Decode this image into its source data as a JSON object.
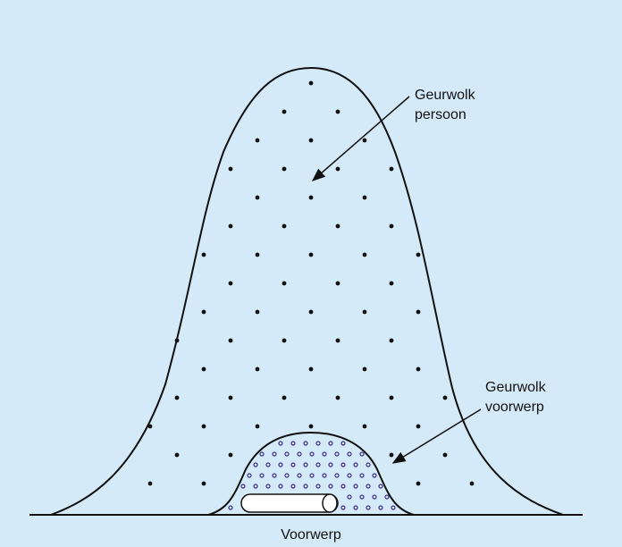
{
  "diagram": {
    "labels": {
      "person_cloud": [
        "Geurwolk",
        "persoon"
      ],
      "object_cloud": [
        "Geurwolk",
        "voorwerp"
      ],
      "object": "Voorwerp"
    },
    "colors": {
      "background": "#d4eaf8",
      "outline": "#111111",
      "person_dots": "#111111",
      "object_dots": "#3a2f8a",
      "object_fill": "#ffffff"
    }
  }
}
